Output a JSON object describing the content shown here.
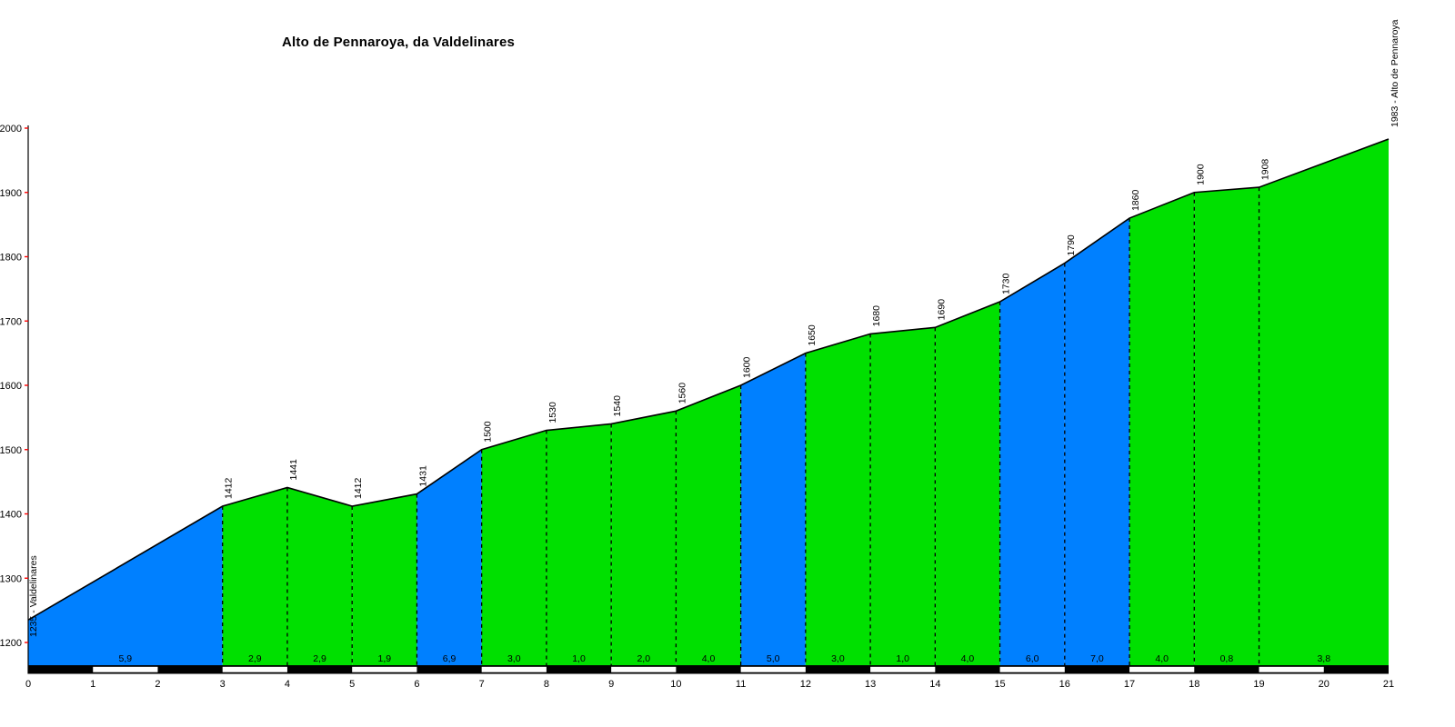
{
  "chart_data": {
    "type": "area",
    "title": "Alto de Pennaroya, da Valdelinares",
    "start_label": "1235 - Valdelinares",
    "end_label": "1983 - Alto de Pennaroya",
    "x_unit": "km",
    "y_unit": "m",
    "xlim": [
      0,
      21
    ],
    "ylim": [
      1200,
      2000
    ],
    "y_ticks": [
      1200,
      1300,
      1400,
      1500,
      1600,
      1700,
      1800,
      1900,
      2000
    ],
    "x_ticks": [
      0,
      1,
      2,
      3,
      4,
      5,
      6,
      7,
      8,
      9,
      10,
      11,
      12,
      13,
      14,
      15,
      16,
      17,
      18,
      19,
      20,
      21
    ],
    "profile_points": [
      {
        "km": 0,
        "elev": 1235
      },
      {
        "km": 3,
        "elev": 1412
      },
      {
        "km": 4,
        "elev": 1441
      },
      {
        "km": 5,
        "elev": 1412
      },
      {
        "km": 6,
        "elev": 1431
      },
      {
        "km": 7,
        "elev": 1500
      },
      {
        "km": 8,
        "elev": 1530
      },
      {
        "km": 9,
        "elev": 1540
      },
      {
        "km": 10,
        "elev": 1560
      },
      {
        "km": 11,
        "elev": 1600
      },
      {
        "km": 12,
        "elev": 1650
      },
      {
        "km": 13,
        "elev": 1680
      },
      {
        "km": 14,
        "elev": 1690
      },
      {
        "km": 15,
        "elev": 1730
      },
      {
        "km": 16,
        "elev": 1790
      },
      {
        "km": 17,
        "elev": 1860
      },
      {
        "km": 18,
        "elev": 1900
      },
      {
        "km": 19,
        "elev": 1908
      },
      {
        "km": 21,
        "elev": 1983
      }
    ],
    "elevation_labels": [
      {
        "km": 3,
        "text": "1412"
      },
      {
        "km": 4,
        "text": "1441"
      },
      {
        "km": 5,
        "text": "1412"
      },
      {
        "km": 6,
        "text": "1431"
      },
      {
        "km": 7,
        "text": "1500"
      },
      {
        "km": 8,
        "text": "1530"
      },
      {
        "km": 9,
        "text": "1540"
      },
      {
        "km": 10,
        "text": "1560"
      },
      {
        "km": 11,
        "text": "1600"
      },
      {
        "km": 12,
        "text": "1650"
      },
      {
        "km": 13,
        "text": "1680"
      },
      {
        "km": 14,
        "text": "1690"
      },
      {
        "km": 15,
        "text": "1730"
      },
      {
        "km": 16,
        "text": "1790"
      },
      {
        "km": 17,
        "text": "1860"
      },
      {
        "km": 18,
        "text": "1900"
      },
      {
        "km": 19,
        "text": "1908"
      }
    ],
    "segments": [
      {
        "from": 0,
        "to": 3,
        "gradient": "5,9",
        "steep": true
      },
      {
        "from": 3,
        "to": 4,
        "gradient": "2,9",
        "steep": false
      },
      {
        "from": 4,
        "to": 5,
        "gradient": "2,9",
        "steep": false
      },
      {
        "from": 5,
        "to": 6,
        "gradient": "1,9",
        "steep": false
      },
      {
        "from": 6,
        "to": 7,
        "gradient": "6,9",
        "steep": true
      },
      {
        "from": 7,
        "to": 8,
        "gradient": "3,0",
        "steep": false
      },
      {
        "from": 8,
        "to": 9,
        "gradient": "1,0",
        "steep": false
      },
      {
        "from": 9,
        "to": 10,
        "gradient": "2,0",
        "steep": false
      },
      {
        "from": 10,
        "to": 11,
        "gradient": "4,0",
        "steep": false
      },
      {
        "from": 11,
        "to": 12,
        "gradient": "5,0",
        "steep": true
      },
      {
        "from": 12,
        "to": 13,
        "gradient": "3,0",
        "steep": false
      },
      {
        "from": 13,
        "to": 14,
        "gradient": "1,0",
        "steep": false
      },
      {
        "from": 14,
        "to": 15,
        "gradient": "4,0",
        "steep": false
      },
      {
        "from": 15,
        "to": 16,
        "gradient": "6,0",
        "steep": true
      },
      {
        "from": 16,
        "to": 17,
        "gradient": "7,0",
        "steep": true
      },
      {
        "from": 17,
        "to": 18,
        "gradient": "4,0",
        "steep": false
      },
      {
        "from": 18,
        "to": 19,
        "gradient": "0,8",
        "steep": false
      },
      {
        "from": 19,
        "to": 21,
        "gradient": "3,8",
        "steep": false
      }
    ],
    "colors": {
      "steep": "#0080ff",
      "easy": "#00e000",
      "tick": "#ff0000",
      "line": "#000000",
      "bar_black": "#000000",
      "bar_white": "#ffffff",
      "background": "#ffffff"
    },
    "legend_position": "none",
    "grid": "km-dashed-separators"
  }
}
